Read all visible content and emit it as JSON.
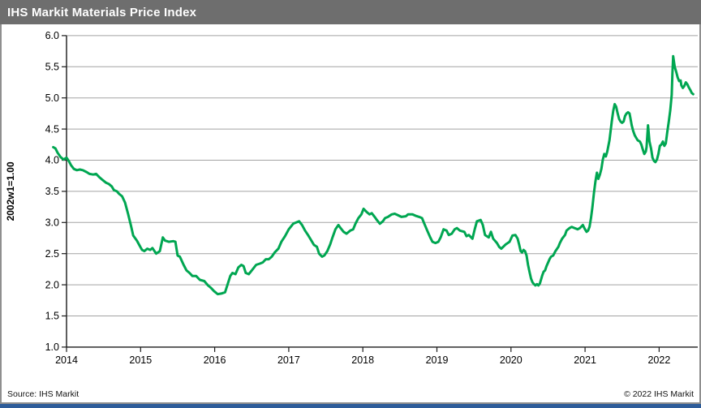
{
  "title_bar": {
    "title": "IHS Markit Materials Price Index",
    "bg_color": "#6e6e6e",
    "fg_color": "#ffffff"
  },
  "footer": {
    "source": "Source: IHS Markit",
    "copyright": "© 2022 IHS Markit",
    "bottom_bar_color": "#2e5c99"
  },
  "chart_data": {
    "type": "line",
    "title": "IHS Markit Materials Price Index",
    "xlabel": "",
    "ylabel": "2002w1=1.00",
    "ylim": [
      1.0,
      6.0
    ],
    "ytick_step": 0.5,
    "yticks": [
      1.0,
      1.5,
      2.0,
      2.5,
      3.0,
      3.5,
      4.0,
      4.5,
      5.0,
      5.5,
      6.0
    ],
    "xticks": [
      2014,
      2015,
      2016,
      2017,
      2018,
      2019,
      2020,
      2021,
      2022
    ],
    "xlim": [
      2013.8,
      2022.52
    ],
    "grid": "horizontal",
    "legend_position": "none",
    "line_color": "#00a651",
    "grid_color": "#a3a3a3",
    "axis_color": "#1a1a1a",
    "series": [
      {
        "name": "IHS Markit Materials Price Index (2002w1=1.00)",
        "points": [
          [
            2013.82,
            4.21
          ],
          [
            2013.85,
            4.19
          ],
          [
            2013.88,
            4.12
          ],
          [
            2013.92,
            4.05
          ],
          [
            2013.96,
            4.01
          ],
          [
            2014.0,
            4.04
          ],
          [
            2014.03,
            3.99
          ],
          [
            2014.06,
            3.92
          ],
          [
            2014.1,
            3.86
          ],
          [
            2014.14,
            3.84
          ],
          [
            2014.18,
            3.85
          ],
          [
            2014.22,
            3.84
          ],
          [
            2014.27,
            3.81
          ],
          [
            2014.31,
            3.78
          ],
          [
            2014.36,
            3.77
          ],
          [
            2014.4,
            3.78
          ],
          [
            2014.44,
            3.73
          ],
          [
            2014.49,
            3.68
          ],
          [
            2014.53,
            3.64
          ],
          [
            2014.57,
            3.62
          ],
          [
            2014.61,
            3.58
          ],
          [
            2014.64,
            3.52
          ],
          [
            2014.68,
            3.5
          ],
          [
            2014.71,
            3.46
          ],
          [
            2014.75,
            3.42
          ],
          [
            2014.79,
            3.32
          ],
          [
            2014.83,
            3.14
          ],
          [
            2014.87,
            2.95
          ],
          [
            2014.9,
            2.79
          ],
          [
            2014.95,
            2.71
          ],
          [
            2015.0,
            2.6
          ],
          [
            2015.02,
            2.56
          ],
          [
            2015.05,
            2.54
          ],
          [
            2015.09,
            2.58
          ],
          [
            2015.13,
            2.56
          ],
          [
            2015.16,
            2.59
          ],
          [
            2015.21,
            2.5
          ],
          [
            2015.26,
            2.54
          ],
          [
            2015.3,
            2.76
          ],
          [
            2015.33,
            2.71
          ],
          [
            2015.38,
            2.69
          ],
          [
            2015.44,
            2.7
          ],
          [
            2015.47,
            2.69
          ],
          [
            2015.5,
            2.47
          ],
          [
            2015.53,
            2.45
          ],
          [
            2015.58,
            2.32
          ],
          [
            2015.62,
            2.23
          ],
          [
            2015.66,
            2.19
          ],
          [
            2015.7,
            2.14
          ],
          [
            2015.75,
            2.14
          ],
          [
            2015.8,
            2.08
          ],
          [
            2015.86,
            2.06
          ],
          [
            2015.91,
            1.99
          ],
          [
            2015.95,
            1.95
          ],
          [
            2015.99,
            1.9
          ],
          [
            2016.04,
            1.85
          ],
          [
            2016.09,
            1.86
          ],
          [
            2016.14,
            1.88
          ],
          [
            2016.17,
            1.99
          ],
          [
            2016.21,
            2.14
          ],
          [
            2016.24,
            2.19
          ],
          [
            2016.28,
            2.17
          ],
          [
            2016.32,
            2.28
          ],
          [
            2016.36,
            2.32
          ],
          [
            2016.39,
            2.3
          ],
          [
            2016.42,
            2.19
          ],
          [
            2016.46,
            2.17
          ],
          [
            2016.5,
            2.23
          ],
          [
            2016.56,
            2.32
          ],
          [
            2016.61,
            2.34
          ],
          [
            2016.65,
            2.36
          ],
          [
            2016.69,
            2.41
          ],
          [
            2016.73,
            2.41
          ],
          [
            2016.77,
            2.45
          ],
          [
            2016.81,
            2.52
          ],
          [
            2016.86,
            2.58
          ],
          [
            2016.9,
            2.69
          ],
          [
            2016.95,
            2.78
          ],
          [
            2017.0,
            2.89
          ],
          [
            2017.06,
            2.98
          ],
          [
            2017.1,
            3.0
          ],
          [
            2017.14,
            3.02
          ],
          [
            2017.18,
            2.96
          ],
          [
            2017.22,
            2.87
          ],
          [
            2017.26,
            2.8
          ],
          [
            2017.31,
            2.7
          ],
          [
            2017.34,
            2.64
          ],
          [
            2017.38,
            2.61
          ],
          [
            2017.41,
            2.5
          ],
          [
            2017.45,
            2.45
          ],
          [
            2017.48,
            2.47
          ],
          [
            2017.52,
            2.54
          ],
          [
            2017.56,
            2.65
          ],
          [
            2017.59,
            2.76
          ],
          [
            2017.63,
            2.89
          ],
          [
            2017.67,
            2.96
          ],
          [
            2017.7,
            2.91
          ],
          [
            2017.74,
            2.85
          ],
          [
            2017.78,
            2.82
          ],
          [
            2017.83,
            2.87
          ],
          [
            2017.87,
            2.89
          ],
          [
            2017.9,
            2.98
          ],
          [
            2017.94,
            3.07
          ],
          [
            2017.98,
            3.13
          ],
          [
            2018.01,
            3.22
          ],
          [
            2018.05,
            3.17
          ],
          [
            2018.09,
            3.13
          ],
          [
            2018.12,
            3.15
          ],
          [
            2018.16,
            3.09
          ],
          [
            2018.19,
            3.04
          ],
          [
            2018.23,
            2.98
          ],
          [
            2018.27,
            3.02
          ],
          [
            2018.3,
            3.07
          ],
          [
            2018.34,
            3.09
          ],
          [
            2018.39,
            3.13
          ],
          [
            2018.43,
            3.14
          ],
          [
            2018.47,
            3.12
          ],
          [
            2018.52,
            3.09
          ],
          [
            2018.58,
            3.1
          ],
          [
            2018.61,
            3.13
          ],
          [
            2018.67,
            3.13
          ],
          [
            2018.71,
            3.11
          ],
          [
            2018.76,
            3.09
          ],
          [
            2018.8,
            3.07
          ],
          [
            2018.83,
            2.98
          ],
          [
            2018.87,
            2.87
          ],
          [
            2018.91,
            2.76
          ],
          [
            2018.94,
            2.69
          ],
          [
            2018.98,
            2.67
          ],
          [
            2019.02,
            2.69
          ],
          [
            2019.05,
            2.76
          ],
          [
            2019.09,
            2.89
          ],
          [
            2019.13,
            2.87
          ],
          [
            2019.16,
            2.8
          ],
          [
            2019.2,
            2.82
          ],
          [
            2019.24,
            2.89
          ],
          [
            2019.27,
            2.91
          ],
          [
            2019.31,
            2.87
          ],
          [
            2019.37,
            2.85
          ],
          [
            2019.4,
            2.78
          ],
          [
            2019.43,
            2.8
          ],
          [
            2019.48,
            2.74
          ],
          [
            2019.51,
            2.89
          ],
          [
            2019.54,
            3.02
          ],
          [
            2019.59,
            3.04
          ],
          [
            2019.62,
            2.96
          ],
          [
            2019.65,
            2.8
          ],
          [
            2019.7,
            2.76
          ],
          [
            2019.73,
            2.85
          ],
          [
            2019.76,
            2.74
          ],
          [
            2019.81,
            2.67
          ],
          [
            2019.84,
            2.61
          ],
          [
            2019.87,
            2.58
          ],
          [
            2019.93,
            2.65
          ],
          [
            2019.98,
            2.69
          ],
          [
            2020.02,
            2.79
          ],
          [
            2020.06,
            2.8
          ],
          [
            2020.09,
            2.74
          ],
          [
            2020.11,
            2.65
          ],
          [
            2020.13,
            2.54
          ],
          [
            2020.15,
            2.52
          ],
          [
            2020.17,
            2.56
          ],
          [
            2020.19,
            2.54
          ],
          [
            2020.21,
            2.47
          ],
          [
            2020.23,
            2.32
          ],
          [
            2020.25,
            2.21
          ],
          [
            2020.27,
            2.1
          ],
          [
            2020.29,
            2.04
          ],
          [
            2020.31,
            2.01
          ],
          [
            2020.33,
            1.99
          ],
          [
            2020.35,
            2.01
          ],
          [
            2020.37,
            1.99
          ],
          [
            2020.39,
            2.02
          ],
          [
            2020.42,
            2.14
          ],
          [
            2020.44,
            2.21
          ],
          [
            2020.46,
            2.23
          ],
          [
            2020.48,
            2.3
          ],
          [
            2020.52,
            2.41
          ],
          [
            2020.54,
            2.45
          ],
          [
            2020.57,
            2.47
          ],
          [
            2020.6,
            2.54
          ],
          [
            2020.64,
            2.61
          ],
          [
            2020.66,
            2.67
          ],
          [
            2020.69,
            2.74
          ],
          [
            2020.73,
            2.8
          ],
          [
            2020.75,
            2.87
          ],
          [
            2020.79,
            2.91
          ],
          [
            2020.82,
            2.93
          ],
          [
            2020.86,
            2.91
          ],
          [
            2020.9,
            2.89
          ],
          [
            2020.93,
            2.91
          ],
          [
            2020.97,
            2.96
          ],
          [
            2020.99,
            2.91
          ],
          [
            2021.02,
            2.85
          ],
          [
            2021.04,
            2.87
          ],
          [
            2021.06,
            2.93
          ],
          [
            2021.08,
            3.07
          ],
          [
            2021.1,
            3.25
          ],
          [
            2021.12,
            3.48
          ],
          [
            2021.14,
            3.66
          ],
          [
            2021.16,
            3.8
          ],
          [
            2021.18,
            3.7
          ],
          [
            2021.2,
            3.77
          ],
          [
            2021.22,
            3.86
          ],
          [
            2021.24,
            4.01
          ],
          [
            2021.26,
            4.1
          ],
          [
            2021.28,
            4.06
          ],
          [
            2021.3,
            4.14
          ],
          [
            2021.33,
            4.32
          ],
          [
            2021.36,
            4.62
          ],
          [
            2021.38,
            4.79
          ],
          [
            2021.4,
            4.9
          ],
          [
            2021.42,
            4.86
          ],
          [
            2021.44,
            4.75
          ],
          [
            2021.46,
            4.66
          ],
          [
            2021.48,
            4.62
          ],
          [
            2021.5,
            4.6
          ],
          [
            2021.52,
            4.62
          ],
          [
            2021.54,
            4.71
          ],
          [
            2021.56,
            4.75
          ],
          [
            2021.58,
            4.77
          ],
          [
            2021.6,
            4.75
          ],
          [
            2021.61,
            4.69
          ],
          [
            2021.63,
            4.56
          ],
          [
            2021.65,
            4.47
          ],
          [
            2021.67,
            4.4
          ],
          [
            2021.69,
            4.36
          ],
          [
            2021.71,
            4.32
          ],
          [
            2021.74,
            4.3
          ],
          [
            2021.76,
            4.25
          ],
          [
            2021.78,
            4.17
          ],
          [
            2021.8,
            4.1
          ],
          [
            2021.82,
            4.14
          ],
          [
            2021.83,
            4.21
          ],
          [
            2021.85,
            4.56
          ],
          [
            2021.87,
            4.3
          ],
          [
            2021.89,
            4.19
          ],
          [
            2021.91,
            4.04
          ],
          [
            2021.93,
            3.99
          ],
          [
            2021.95,
            3.97
          ],
          [
            2021.97,
            4.01
          ],
          [
            2021.99,
            4.1
          ],
          [
            2022.01,
            4.23
          ],
          [
            2022.03,
            4.25
          ],
          [
            2022.05,
            4.3
          ],
          [
            2022.07,
            4.23
          ],
          [
            2022.09,
            4.27
          ],
          [
            2022.11,
            4.45
          ],
          [
            2022.13,
            4.62
          ],
          [
            2022.15,
            4.8
          ],
          [
            2022.17,
            5.05
          ],
          [
            2022.18,
            5.4
          ],
          [
            2022.19,
            5.67
          ],
          [
            2022.21,
            5.5
          ],
          [
            2022.23,
            5.42
          ],
          [
            2022.25,
            5.33
          ],
          [
            2022.27,
            5.27
          ],
          [
            2022.29,
            5.28
          ],
          [
            2022.3,
            5.2
          ],
          [
            2022.32,
            5.16
          ],
          [
            2022.34,
            5.19
          ],
          [
            2022.36,
            5.25
          ],
          [
            2022.38,
            5.22
          ],
          [
            2022.4,
            5.17
          ],
          [
            2022.42,
            5.13
          ],
          [
            2022.44,
            5.08
          ],
          [
            2022.46,
            5.06
          ]
        ]
      }
    ]
  }
}
